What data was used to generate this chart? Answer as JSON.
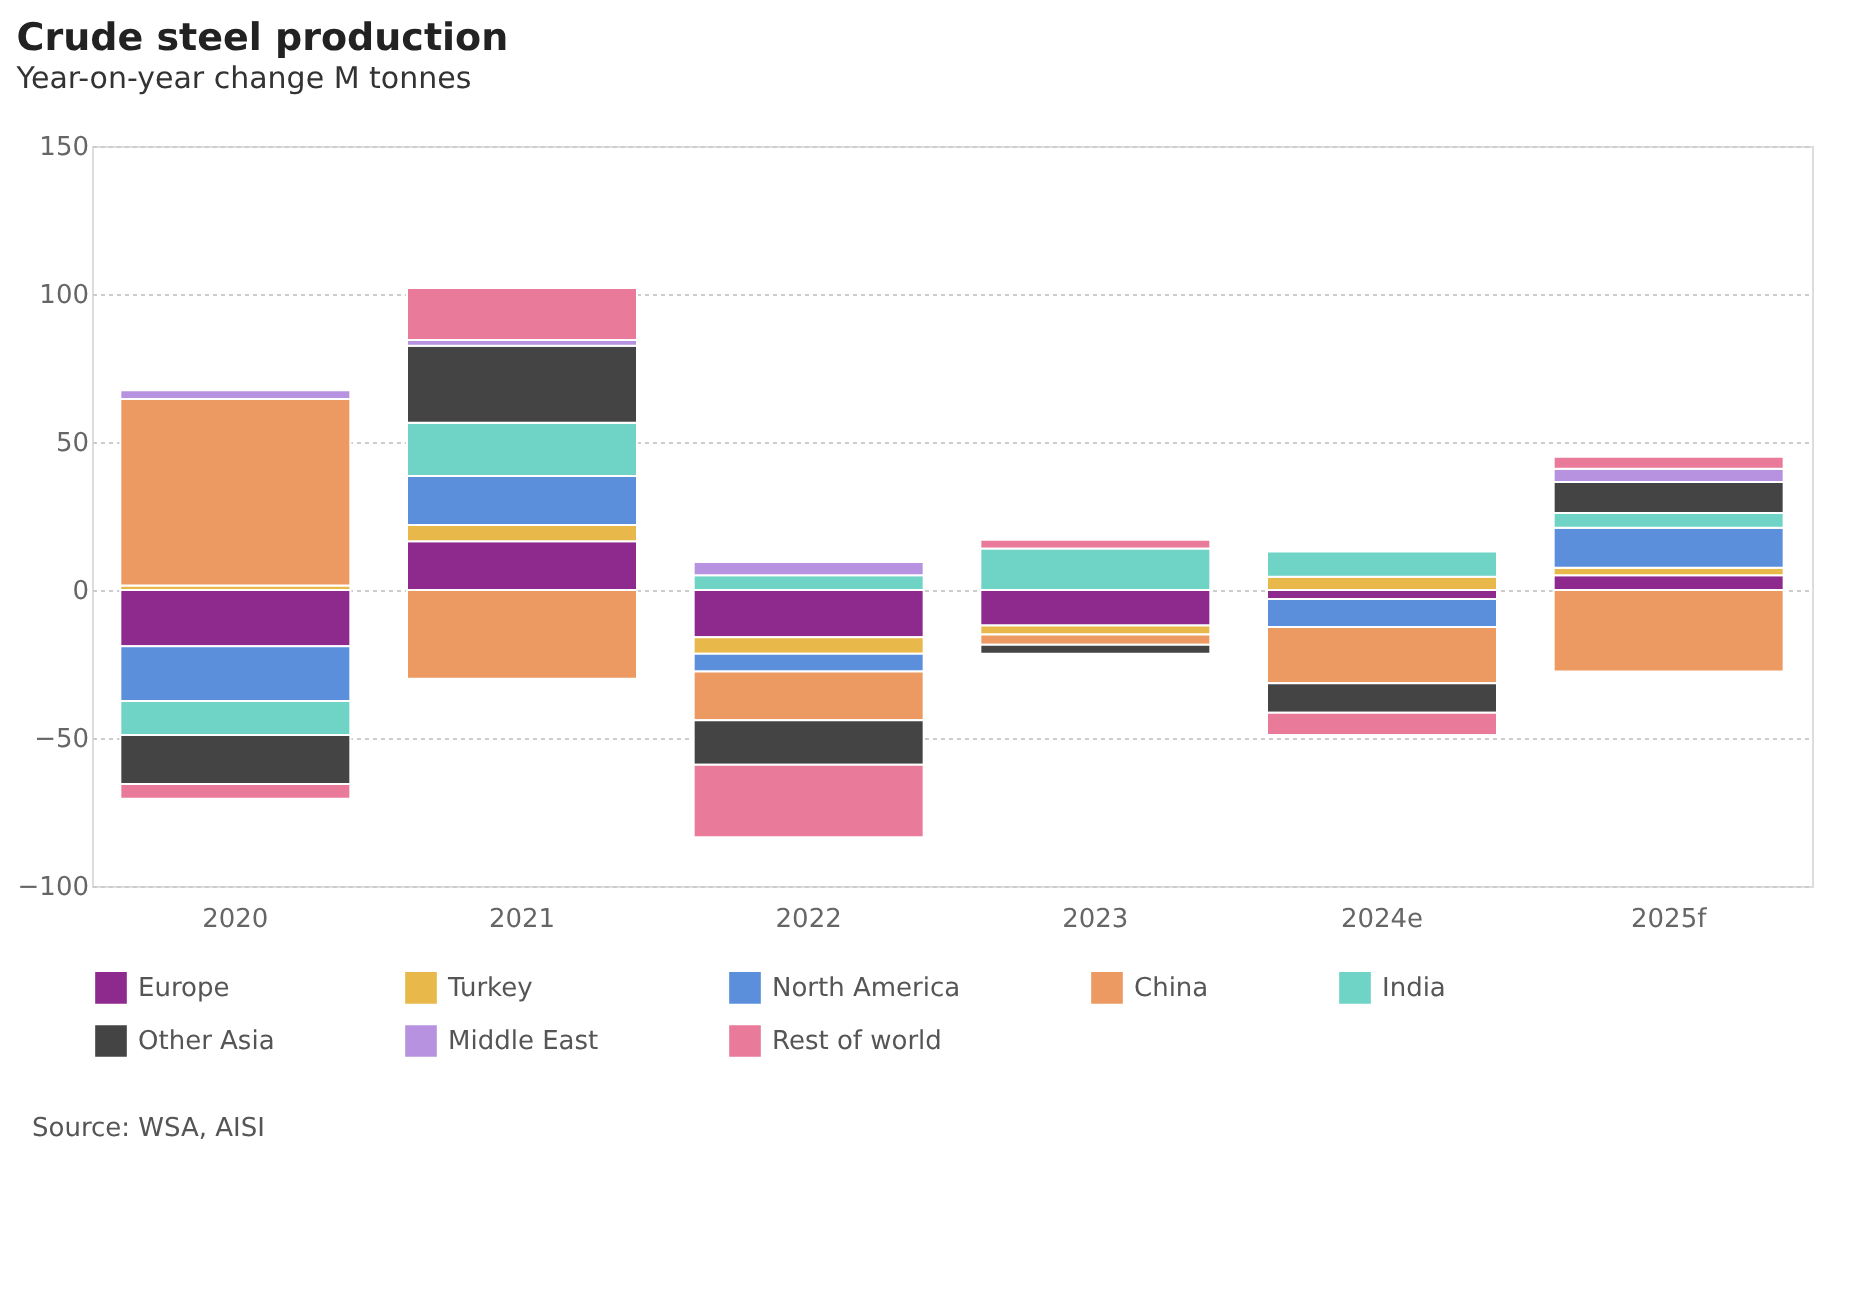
{
  "chart_data": {
    "type": "bar",
    "stacked": true,
    "title": "Crude steel production",
    "subtitle": "Year-on-year change M tonnes",
    "categories": [
      "2020",
      "2021",
      "2022",
      "2023",
      "2024e",
      "2025f"
    ],
    "series": [
      {
        "name": "Europe",
        "color": "#8e2a8e",
        "values": [
          -19,
          16.5,
          -16,
          -12,
          -3,
          5
        ]
      },
      {
        "name": "Turkey",
        "color": "#e8b84a",
        "values": [
          1.5,
          5.5,
          -5.5,
          -3,
          4.5,
          2.5
        ]
      },
      {
        "name": "North America",
        "color": "#5b8fdc",
        "values": [
          -18.5,
          16.5,
          -6,
          0,
          -9.5,
          13.5
        ]
      },
      {
        "name": "China",
        "color": "#ec9a62",
        "values": [
          63,
          -30,
          -16.5,
          -3.5,
          -19,
          -27.5
        ]
      },
      {
        "name": "India",
        "color": "#6fd3c6",
        "values": [
          -11.5,
          18,
          5,
          14,
          8.5,
          5
        ]
      },
      {
        "name": "Other Asia",
        "color": "#444444",
        "values": [
          -16.5,
          26,
          -15,
          -3,
          -10,
          10.5
        ]
      },
      {
        "name": "Middle East",
        "color": "#b792e0",
        "values": [
          3,
          2,
          4.5,
          0,
          0,
          4.5
        ]
      },
      {
        "name": "Rest of world",
        "color": "#e97a9a",
        "values": [
          -5,
          17.5,
          -24.5,
          3,
          -7.5,
          4
        ]
      }
    ],
    "ylim": [
      -100,
      150
    ],
    "yticks": [
      -100,
      -50,
      0,
      50,
      100,
      150
    ],
    "grid": "y",
    "legend": "bottom",
    "annotations": [
      "Source: WSA, AISI"
    ]
  }
}
